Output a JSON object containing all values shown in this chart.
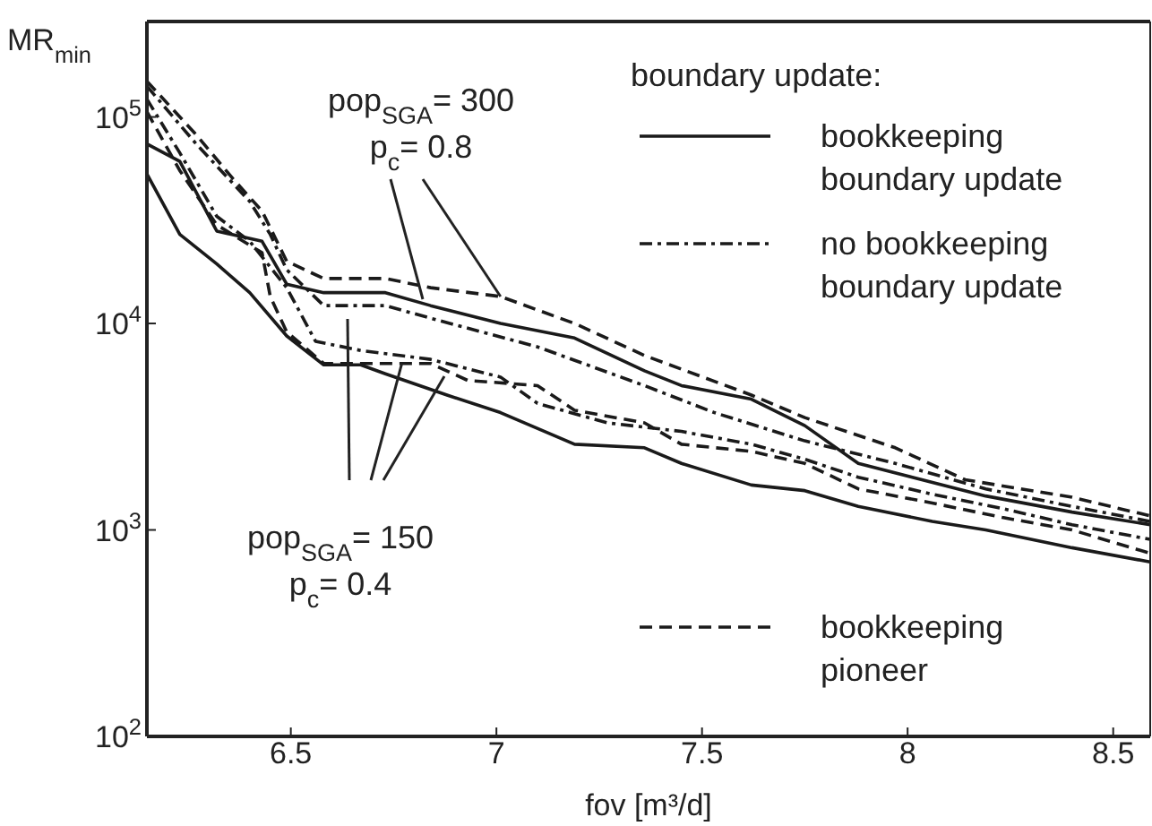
{
  "chart_data": {
    "type": "line",
    "xlabel": "fov [m³/d]",
    "ylabel": "MR$_{min}$",
    "log": "y",
    "grid": false,
    "legend": "right",
    "legend_title": "boundary update:",
    "marker": "none",
    "xlim": [
      6.15,
      8.59
    ],
    "xticks": [
      6.5,
      7,
      7.5,
      8,
      8.5
    ],
    "ylim": [
      100,
      290000
    ],
    "yticks": [
      {
        "value": 100,
        "label": "10$^{2}$"
      },
      {
        "value": 1000,
        "label": "10$^{3}$"
      },
      {
        "value": 10000,
        "label": "10$^{4}$"
      },
      {
        "value": 100000,
        "label": "10$^{5}$"
      }
    ],
    "annotations": [
      "pop$_{SGA}$= 300",
      {
        "text": "p$_{c}$= 0.8",
        "x": 7.01,
        "y": 13500
      },
      {
        "text": "pop$_{SGA}$= 150",
        "x": 6.77,
        "y": 6400
      },
      "p$_{c}$= 0.4"
    ],
    "series": [
      {
        "name": "bookkeeping boundary update",
        "color": "#1a1a1a",
        "line_style": "solid",
        "x": [
          6.15,
          6.23,
          6.32,
          6.43,
          6.49,
          6.58,
          6.73,
          6.84,
          7.01,
          7.19,
          7.36,
          7.45,
          7.62,
          7.75,
          7.88,
          8.19,
          8.4,
          8.59
        ],
        "values": [
          74000,
          61000,
          28000,
          25000,
          15500,
          14100,
          14100,
          12200,
          10000,
          8500,
          5900,
          5000,
          4300,
          3200,
          2100,
          1460,
          1220,
          1060
        ]
      },
      {
        "color": "#1a1a1a",
        "line_style": "solid",
        "x": [
          6.15,
          6.23,
          6.32,
          6.4,
          6.49,
          6.58,
          6.67,
          6.73,
          6.88,
          7.01,
          7.19,
          7.36,
          7.45,
          7.62,
          7.75,
          7.88,
          8.06,
          8.19,
          8.4,
          8.59
        ],
        "values": [
          53000,
          27000,
          19400,
          14100,
          8700,
          6300,
          6300,
          5700,
          4500,
          3700,
          2600,
          2500,
          2100,
          1650,
          1550,
          1300,
          1100,
          1000,
          820,
          700
        ]
      },
      {
        "name": "no bookkeeping boundary update",
        "color": "#1a1a1a",
        "line_style": "dashdot",
        "x": [
          6.15,
          6.27,
          6.4,
          6.45,
          6.49,
          6.58,
          6.73,
          6.84,
          7.1,
          7.36,
          7.53,
          7.75,
          7.97,
          8.19,
          8.4,
          8.59
        ],
        "values": [
          141000,
          74000,
          39000,
          27000,
          18200,
          12200,
          12200,
          10600,
          7700,
          5000,
          3700,
          2700,
          2100,
          1580,
          1300,
          1100
        ]
      },
      {
        "color": "#1a1a1a",
        "line_style": "dashdot",
        "x": [
          6.15,
          6.23,
          6.32,
          6.4,
          6.49,
          6.56,
          6.67,
          6.84,
          7.01,
          7.1,
          7.27,
          7.45,
          7.62,
          7.75,
          7.88,
          8.06,
          8.23,
          8.4,
          8.59
        ],
        "values": [
          122000,
          67000,
          33000,
          25000,
          14900,
          8200,
          7400,
          6700,
          5500,
          4100,
          3300,
          3000,
          2600,
          2200,
          1800,
          1490,
          1270,
          1060,
          900
        ]
      },
      {
        "name": "bookkeeping pioneer",
        "color": "#1a1a1a",
        "line_style": "dashed",
        "x": [
          6.15,
          6.27,
          6.36,
          6.43,
          6.49,
          6.58,
          6.73,
          6.84,
          7.01,
          7.19,
          7.36,
          7.62,
          7.75,
          7.97,
          8.14,
          8.4,
          8.59
        ],
        "values": [
          149000,
          82000,
          50000,
          35000,
          20000,
          16500,
          16500,
          14900,
          13500,
          10000,
          7000,
          4500,
          3500,
          2500,
          1750,
          1440,
          1170
        ]
      },
      {
        "color": "#1a1a1a",
        "line_style": "dashed",
        "x": [
          6.15,
          6.23,
          6.32,
          6.43,
          6.45,
          6.49,
          6.58,
          6.84,
          6.93,
          7.1,
          7.19,
          7.36,
          7.45,
          7.62,
          7.75,
          7.88,
          8.06,
          8.23,
          8.4,
          8.59
        ],
        "values": [
          106000,
          55000,
          30000,
          22000,
          13500,
          9100,
          6400,
          6400,
          5300,
          5000,
          3800,
          3300,
          2600,
          2400,
          2100,
          1580,
          1350,
          1150,
          1000,
          770
        ]
      }
    ]
  }
}
